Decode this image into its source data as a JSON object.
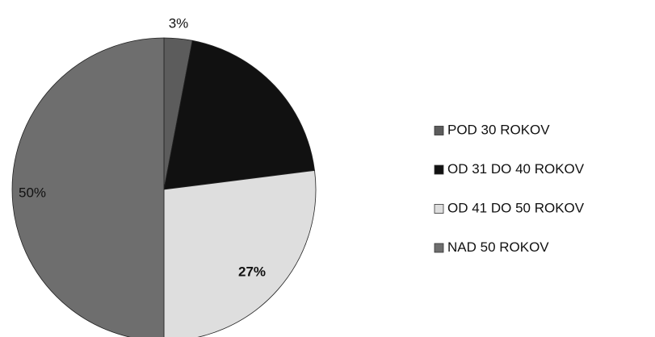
{
  "chart_data": {
    "type": "pie",
    "categories": [
      "POD 30 ROKOV",
      "OD 31 DO 40 ROKOV",
      "OD 41 DO 50 ROKOV",
      "NAD 50 ROKOV"
    ],
    "values": [
      3,
      20,
      27,
      50
    ],
    "value_labels": [
      "3%",
      null,
      "27%",
      "50%"
    ],
    "colors": [
      "#5c5c5c",
      "#111111",
      "#dedede",
      "#6e6e6e"
    ],
    "legend": "right"
  }
}
